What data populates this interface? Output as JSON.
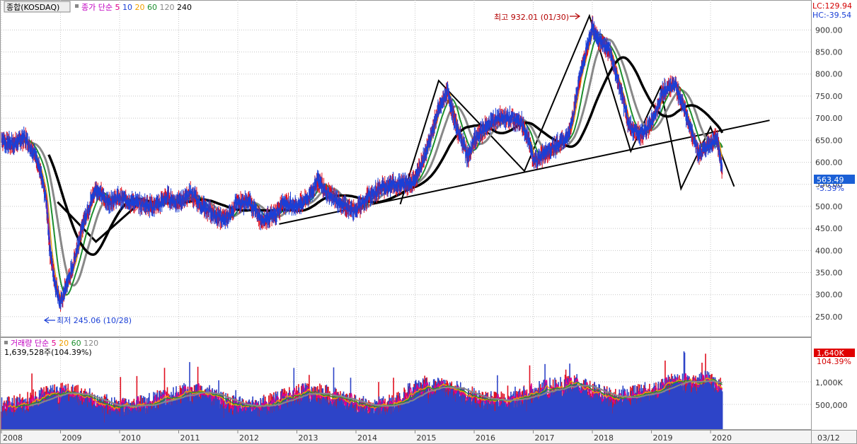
{
  "price_panel": {
    "symbol_label": "종합(KOSDAQ)",
    "ma_label": "종가 단순",
    "ma_periods": [
      "5",
      "10",
      "20",
      "60",
      "120",
      "240"
    ],
    "ma_colors": [
      "#e0008a",
      "#1a3fd6",
      "#f0a000",
      "#1d8f2e",
      "#888888",
      "#000000"
    ],
    "lc_text": "LC:129.94",
    "hc_text": "HC:-39.54",
    "current_value": "563.49",
    "current_change": "-5.39%",
    "high_annotation": "최고 932.01 (01/30)",
    "low_annotation": "최저 245.06 (10/28)"
  },
  "volume_panel": {
    "label": "거래량 단순",
    "ma_periods": [
      "5",
      "20",
      "60",
      "120"
    ],
    "ma_colors": [
      "#e0008a",
      "#f0a000",
      "#1d8f2e",
      "#888888"
    ],
    "volume_text": "1,639,528주(104.39%)",
    "current_badge": "1,640K",
    "current_pct": "104.39%",
    "y_ticks": [
      "1,000K",
      "500,000"
    ]
  },
  "chart_data": {
    "type": "line",
    "title": "종합(KOSDAQ)",
    "x_ticks": [
      "2008",
      "2009",
      "2010",
      "2011",
      "2012",
      "2013",
      "2014",
      "2015",
      "2016",
      "2017",
      "2018",
      "2019",
      "2020",
      "03/12"
    ],
    "y_ticks": [
      "900.00",
      "850.00",
      "800.00",
      "750.00",
      "700.00",
      "650.00",
      "600.00",
      "550.00",
      "500.00",
      "450.00",
      "400.00",
      "350.00",
      "300.00",
      "250.00"
    ],
    "ylim": [
      205,
      955
    ],
    "series": [
      {
        "x": [
          2008.0,
          2008.2,
          2008.4,
          2008.6,
          2008.75,
          2008.82,
          2008.9,
          2009.0,
          2009.2,
          2009.4,
          2009.6,
          2009.8,
          2010.0,
          2010.2,
          2010.4,
          2010.6,
          2010.8,
          2011.0,
          2011.2,
          2011.4,
          2011.6,
          2011.8,
          2012.0,
          2012.2,
          2012.4,
          2012.6,
          2012.8,
          2013.0,
          2013.2,
          2013.35,
          2013.6,
          2013.8,
          2014.0,
          2014.2,
          2014.4,
          2014.6,
          2014.8,
          2015.0,
          2015.2,
          2015.4,
          2015.55,
          2015.7,
          2015.9,
          2016.0,
          2016.2,
          2016.4,
          2016.6,
          2016.8,
          2016.95,
          2017.0,
          2017.2,
          2017.4,
          2017.6,
          2017.8,
          2017.95,
          2018.0,
          2018.1,
          2018.3,
          2018.5,
          2018.6,
          2018.8,
          2019.0,
          2019.2,
          2019.4,
          2019.6,
          2019.8,
          2020.0,
          2020.1,
          2020.2
        ],
        "y": [
          650,
          640,
          655,
          610,
          520,
          400,
          330,
          280,
          360,
          470,
          540,
          510,
          520,
          510,
          505,
          500,
          520,
          510,
          530,
          500,
          480,
          470,
          510,
          510,
          470,
          480,
          510,
          500,
          520,
          560,
          520,
          500,
          490,
          520,
          540,
          550,
          550,
          560,
          630,
          720,
          760,
          680,
          610,
          650,
          680,
          700,
          700,
          690,
          640,
          600,
          620,
          640,
          660,
          800,
          880,
          910,
          880,
          850,
          750,
          690,
          660,
          690,
          760,
          780,
          700,
          620,
          640,
          660,
          580
        ]
      }
    ],
    "annotations": [
      "최고 932.01 (01/30)",
      "최저 245.06 (10/28)"
    ],
    "grid": true
  }
}
